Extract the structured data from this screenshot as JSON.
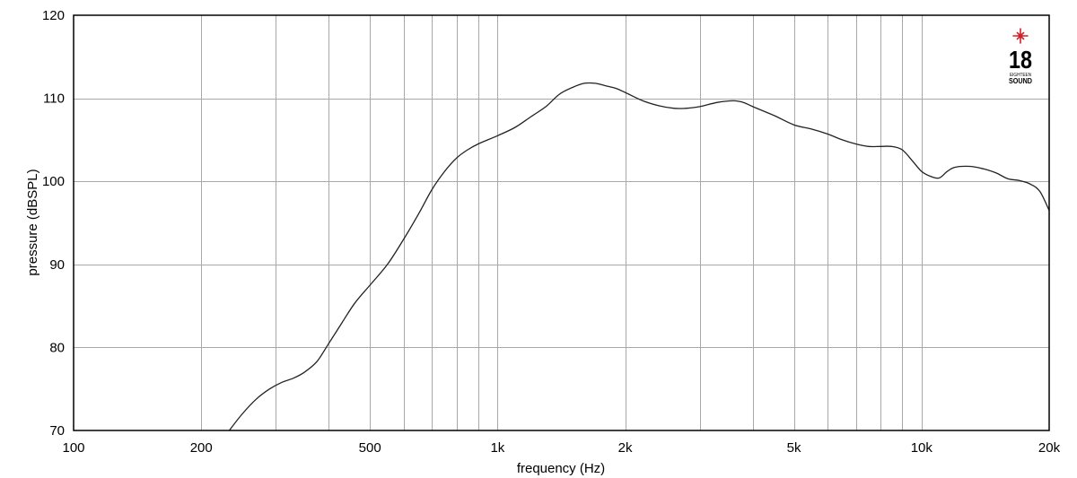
{
  "chart_data": {
    "type": "line",
    "xlabel": "frequency (Hz)",
    "ylabel": "pressure (dBSPL)",
    "x_scale": "log",
    "xlim": [
      100,
      20000
    ],
    "ylim": [
      70,
      120
    ],
    "grid": true,
    "x_ticks": [
      {
        "value": 100,
        "label": "100"
      },
      {
        "value": 200,
        "label": "200"
      },
      {
        "value": 500,
        "label": "500"
      },
      {
        "value": 1000,
        "label": "1k"
      },
      {
        "value": 2000,
        "label": "2k"
      },
      {
        "value": 5000,
        "label": "5k"
      },
      {
        "value": 10000,
        "label": "10k"
      },
      {
        "value": 20000,
        "label": "20k"
      }
    ],
    "x_minor_gridlines": [
      300,
      400,
      600,
      700,
      800,
      900,
      3000,
      4000,
      6000,
      7000,
      8000,
      9000
    ],
    "y_ticks": [
      {
        "value": 70,
        "label": "70"
      },
      {
        "value": 80,
        "label": "80"
      },
      {
        "value": 90,
        "label": "90"
      },
      {
        "value": 100,
        "label": "100"
      },
      {
        "value": 110,
        "label": "110"
      },
      {
        "value": 120,
        "label": "120"
      }
    ],
    "series": [
      {
        "color": "#222222",
        "points": [
          [
            233,
            70.0
          ],
          [
            250,
            72.0
          ],
          [
            270,
            73.8
          ],
          [
            290,
            75.0
          ],
          [
            310,
            75.8
          ],
          [
            330,
            76.3
          ],
          [
            350,
            77.0
          ],
          [
            375,
            78.3
          ],
          [
            400,
            80.5
          ],
          [
            430,
            83.0
          ],
          [
            460,
            85.3
          ],
          [
            500,
            87.5
          ],
          [
            550,
            90.0
          ],
          [
            600,
            93.0
          ],
          [
            650,
            96.0
          ],
          [
            700,
            99.0
          ],
          [
            750,
            101.2
          ],
          [
            800,
            102.8
          ],
          [
            850,
            103.8
          ],
          [
            900,
            104.5
          ],
          [
            1000,
            105.5
          ],
          [
            1100,
            106.5
          ],
          [
            1200,
            107.8
          ],
          [
            1300,
            109.0
          ],
          [
            1400,
            110.5
          ],
          [
            1500,
            111.3
          ],
          [
            1600,
            111.8
          ],
          [
            1700,
            111.8
          ],
          [
            1800,
            111.5
          ],
          [
            1900,
            111.2
          ],
          [
            2000,
            110.7
          ],
          [
            2200,
            109.7
          ],
          [
            2400,
            109.1
          ],
          [
            2600,
            108.8
          ],
          [
            2800,
            108.8
          ],
          [
            3000,
            109.0
          ],
          [
            3300,
            109.5
          ],
          [
            3600,
            109.7
          ],
          [
            3800,
            109.5
          ],
          [
            4000,
            109.0
          ],
          [
            4500,
            107.9
          ],
          [
            5000,
            106.8
          ],
          [
            5500,
            106.3
          ],
          [
            6000,
            105.7
          ],
          [
            6500,
            105.0
          ],
          [
            7000,
            104.5
          ],
          [
            7500,
            104.2
          ],
          [
            8000,
            104.2
          ],
          [
            8500,
            104.2
          ],
          [
            9000,
            103.8
          ],
          [
            9500,
            102.5
          ],
          [
            10000,
            101.2
          ],
          [
            10500,
            100.6
          ],
          [
            11000,
            100.4
          ],
          [
            11500,
            101.2
          ],
          [
            12000,
            101.7
          ],
          [
            13000,
            101.8
          ],
          [
            14000,
            101.5
          ],
          [
            15000,
            101.0
          ],
          [
            16000,
            100.3
          ],
          [
            17000,
            100.1
          ],
          [
            18000,
            99.7
          ],
          [
            19000,
            98.8
          ],
          [
            20000,
            96.5
          ]
        ]
      }
    ]
  },
  "logo": {
    "number": "18",
    "line1": "EIGHTEEN",
    "line2": "SOUND",
    "star_color": "#d0202a"
  }
}
